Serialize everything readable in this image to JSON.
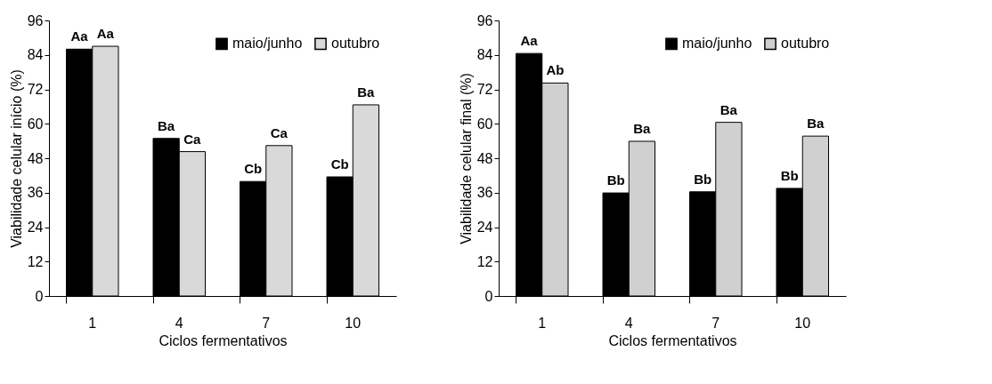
{
  "chart_data": [
    {
      "type": "bar",
      "xlabel": "Ciclos fermentativos",
      "ylabel": "Viabilidade celular início (%)",
      "categories": [
        "1",
        "4",
        "7",
        "10"
      ],
      "series": [
        {
          "name": "maio/junho",
          "color": "#000000",
          "values": [
            86.0,
            54.9,
            39.9,
            41.5
          ]
        },
        {
          "name": "outubro",
          "color": "#d9d9d9",
          "values": [
            87.0,
            50.3,
            52.4,
            66.6
          ]
        }
      ],
      "ylim": [
        0,
        96
      ],
      "yticks": [
        0,
        12,
        24,
        36,
        48,
        60,
        72,
        84,
        96
      ],
      "grid": false,
      "legend": "top right",
      "annotations": [
        {
          "text": "Aa",
          "x": "1",
          "y": 86.0
        },
        {
          "text": "Aa",
          "x": "1",
          "y": 87.0
        },
        {
          "text": "Ba",
          "x": "4",
          "y": 54.9
        },
        {
          "text": "Ca",
          "x": "4",
          "y": 50.3
        },
        {
          "text": "Cb",
          "x": "7",
          "y": 39.9
        },
        {
          "text": "Ca",
          "x": "7",
          "y": 52.4
        },
        {
          "text": "Cb",
          "x": "10",
          "y": 41.5
        },
        {
          "text": "Ba",
          "x": "10",
          "y": 66.6
        }
      ]
    },
    {
      "type": "bar",
      "xlabel": "Ciclos fermentativos",
      "ylabel": "Viabilidade celular final (%)",
      "categories": [
        "1",
        "4",
        "7",
        "10"
      ],
      "series": [
        {
          "name": "maio/junho",
          "color": "#000000",
          "values": [
            84.5,
            35.9,
            36.3,
            37.5
          ]
        },
        {
          "name": "outubro",
          "color": "#d0d0d0",
          "values": [
            74.2,
            53.9,
            60.5,
            55.7
          ]
        }
      ],
      "ylim": [
        0,
        96
      ],
      "yticks": [
        0,
        12,
        24,
        36,
        48,
        60,
        72,
        84,
        96
      ],
      "grid": false,
      "legend": "top right",
      "annotations": [
        {
          "text": "Aa",
          "x": "1",
          "y": 84.5
        },
        {
          "text": "Ab",
          "x": "1",
          "y": 74.2
        },
        {
          "text": "Bb",
          "x": "4",
          "y": 35.9
        },
        {
          "text": "Ba",
          "x": "4",
          "y": 53.9
        },
        {
          "text": "Bb",
          "x": "7",
          "y": 36.3
        },
        {
          "text": "Ba",
          "x": "7",
          "y": 60.5
        },
        {
          "text": "Bb",
          "x": "10",
          "y": 37.5
        },
        {
          "text": "Ba",
          "x": "10",
          "y": 55.7
        }
      ]
    }
  ]
}
